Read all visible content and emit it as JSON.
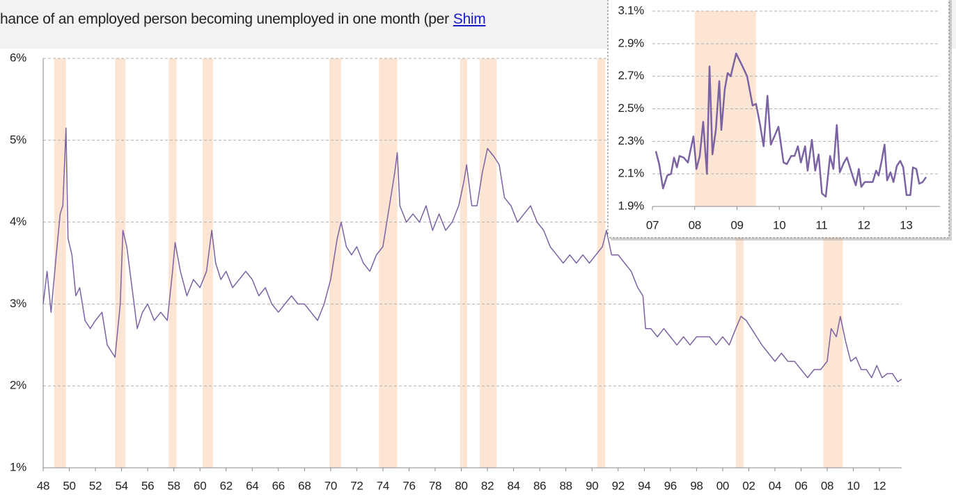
{
  "chart_data": [
    {
      "type": "line",
      "subtitle": "hance of an employed person becoming unemployed in one month (per",
      "subtitle_link": "Shim",
      "color": "#7b62a3",
      "recession_color": "#fde5d4",
      "grid": true,
      "xlim": [
        1948,
        2013.7
      ],
      "ylim": [
        1,
        6
      ],
      "yticks": [
        {
          "value": 1,
          "label": "1%"
        },
        {
          "value": 2,
          "label": "2%"
        },
        {
          "value": 3,
          "label": "3%"
        },
        {
          "value": 4,
          "label": "4%"
        },
        {
          "value": 5,
          "label": "5%"
        },
        {
          "value": 6,
          "label": "6%"
        }
      ],
      "xticks": [
        {
          "value": 1948,
          "label": "48"
        },
        {
          "value": 1950,
          "label": "50"
        },
        {
          "value": 1952,
          "label": "52"
        },
        {
          "value": 1954,
          "label": "54"
        },
        {
          "value": 1956,
          "label": "56"
        },
        {
          "value": 1958,
          "label": "58"
        },
        {
          "value": 1960,
          "label": "60"
        },
        {
          "value": 1962,
          "label": "62"
        },
        {
          "value": 1964,
          "label": "64"
        },
        {
          "value": 1966,
          "label": "66"
        },
        {
          "value": 1968,
          "label": "68"
        },
        {
          "value": 1970,
          "label": "70"
        },
        {
          "value": 1972,
          "label": "72"
        },
        {
          "value": 1974,
          "label": "74"
        },
        {
          "value": 1976,
          "label": "76"
        },
        {
          "value": 1978,
          "label": "78"
        },
        {
          "value": 1980,
          "label": "80"
        },
        {
          "value": 1982,
          "label": "82"
        },
        {
          "value": 1984,
          "label": "84"
        },
        {
          "value": 1986,
          "label": "86"
        },
        {
          "value": 1988,
          "label": "88"
        },
        {
          "value": 1990,
          "label": "90"
        },
        {
          "value": 1992,
          "label": "92"
        },
        {
          "value": 1994,
          "label": "94"
        },
        {
          "value": 1996,
          "label": "96"
        },
        {
          "value": 1998,
          "label": "98"
        },
        {
          "value": 2000,
          "label": "00"
        },
        {
          "value": 2002,
          "label": "02"
        },
        {
          "value": 2004,
          "label": "04"
        },
        {
          "value": 2006,
          "label": "06"
        },
        {
          "value": 2008,
          "label": "08"
        },
        {
          "value": 2010,
          "label": "10"
        },
        {
          "value": 2012,
          "label": "12"
        }
      ],
      "recessions": [
        [
          1948.85,
          1949.75
        ],
        [
          1953.5,
          1954.3
        ],
        [
          1957.6,
          1958.2
        ],
        [
          1960.2,
          1961.0
        ],
        [
          1969.9,
          1970.8
        ],
        [
          1973.7,
          1975.1
        ],
        [
          1979.9,
          1980.45
        ],
        [
          1981.4,
          1982.7
        ],
        [
          1990.4,
          1991.0
        ],
        [
          2001.0,
          2001.6
        ],
        [
          2007.7,
          2009.2
        ]
      ],
      "x": [
        1948.0,
        1948.3,
        1948.6,
        1949.0,
        1949.3,
        1949.5,
        1949.75,
        1949.9,
        1950.2,
        1950.5,
        1950.8,
        1951.2,
        1951.6,
        1952.0,
        1952.5,
        1952.9,
        1953.3,
        1953.5,
        1953.9,
        1954.1,
        1954.4,
        1954.8,
        1955.2,
        1955.6,
        1956.0,
        1956.5,
        1957.0,
        1957.5,
        1957.9,
        1958.1,
        1958.5,
        1959.0,
        1959.5,
        1960.0,
        1960.5,
        1960.9,
        1961.2,
        1961.6,
        1962.0,
        1962.5,
        1963.0,
        1963.5,
        1964.0,
        1964.5,
        1965.0,
        1965.5,
        1966.0,
        1966.5,
        1967.0,
        1967.5,
        1968.0,
        1968.5,
        1969.0,
        1969.5,
        1970.0,
        1970.5,
        1970.8,
        1971.2,
        1971.6,
        1972.0,
        1972.5,
        1973.0,
        1973.5,
        1974.0,
        1974.5,
        1974.9,
        1975.1,
        1975.3,
        1975.8,
        1976.3,
        1976.8,
        1977.3,
        1977.8,
        1978.3,
        1978.8,
        1979.3,
        1979.8,
        1980.2,
        1980.4,
        1980.8,
        1981.2,
        1981.6,
        1982.0,
        1982.5,
        1982.9,
        1983.3,
        1983.8,
        1984.3,
        1984.8,
        1985.3,
        1985.8,
        1986.3,
        1986.8,
        1987.3,
        1987.8,
        1988.3,
        1988.8,
        1989.3,
        1989.8,
        1990.3,
        1990.8,
        1991.1,
        1991.5,
        1992.0,
        1992.5,
        1993.0,
        1993.5,
        1993.9,
        1994.1,
        1994.5,
        1995.0,
        1995.5,
        1996.0,
        1996.5,
        1997.0,
        1997.5,
        1998.0,
        1998.5,
        1999.0,
        1999.5,
        2000.0,
        2000.5,
        2001.0,
        2001.4,
        2001.8,
        2002.2,
        2002.6,
        2003.0,
        2003.5,
        2004.0,
        2004.5,
        2005.0,
        2005.5,
        2006.0,
        2006.5,
        2007.0,
        2007.5,
        2008.0,
        2008.3,
        2008.7,
        2009.0,
        2009.4,
        2009.8,
        2010.2,
        2010.6,
        2011.0,
        2011.4,
        2011.8,
        2012.2,
        2012.6,
        2013.0,
        2013.4,
        2013.7
      ],
      "values": [
        3.0,
        3.4,
        2.9,
        3.6,
        4.1,
        4.2,
        5.15,
        3.8,
        3.6,
        3.1,
        3.2,
        2.8,
        2.7,
        2.8,
        2.9,
        2.5,
        2.4,
        2.35,
        3.0,
        3.9,
        3.7,
        3.2,
        2.7,
        2.9,
        3.0,
        2.8,
        2.9,
        2.8,
        3.4,
        3.75,
        3.4,
        3.1,
        3.3,
        3.2,
        3.4,
        3.9,
        3.5,
        3.3,
        3.4,
        3.2,
        3.3,
        3.4,
        3.3,
        3.1,
        3.2,
        3.0,
        2.9,
        3.0,
        3.1,
        3.0,
        3.0,
        2.9,
        2.8,
        3.0,
        3.3,
        3.8,
        4.0,
        3.7,
        3.6,
        3.7,
        3.5,
        3.4,
        3.6,
        3.7,
        4.2,
        4.6,
        4.85,
        4.2,
        4.0,
        4.1,
        4.0,
        4.2,
        3.9,
        4.1,
        3.9,
        4.0,
        4.2,
        4.5,
        4.7,
        4.2,
        4.2,
        4.6,
        4.9,
        4.8,
        4.7,
        4.3,
        4.2,
        4.0,
        4.1,
        4.2,
        4.0,
        3.9,
        3.7,
        3.6,
        3.5,
        3.6,
        3.5,
        3.6,
        3.5,
        3.6,
        3.7,
        3.9,
        3.6,
        3.6,
        3.5,
        3.4,
        3.2,
        3.1,
        2.7,
        2.7,
        2.6,
        2.7,
        2.6,
        2.5,
        2.6,
        2.5,
        2.6,
        2.6,
        2.6,
        2.5,
        2.6,
        2.5,
        2.7,
        2.85,
        2.8,
        2.7,
        2.6,
        2.5,
        2.4,
        2.3,
        2.4,
        2.3,
        2.3,
        2.2,
        2.1,
        2.2,
        2.2,
        2.3,
        2.7,
        2.6,
        2.85,
        2.55,
        2.3,
        2.35,
        2.2,
        2.2,
        2.1,
        2.25,
        2.1,
        2.15,
        2.15,
        2.05,
        2.08
      ]
    },
    {
      "type": "line",
      "inset": true,
      "color": "#7b62a3",
      "recession_color": "#fde5d4",
      "grid": true,
      "xlim": [
        2007,
        2013.8
      ],
      "ylim": [
        1.9,
        3.1
      ],
      "yticks": [
        {
          "value": 1.9,
          "label": "1.9%"
        },
        {
          "value": 2.1,
          "label": "2.1%"
        },
        {
          "value": 2.3,
          "label": "2.3%"
        },
        {
          "value": 2.5,
          "label": "2.5%"
        },
        {
          "value": 2.7,
          "label": "2.7%"
        },
        {
          "value": 2.9,
          "label": "2.9%"
        },
        {
          "value": 3.1,
          "label": "3.1%"
        }
      ],
      "xticks": [
        {
          "value": 2007,
          "label": "07"
        },
        {
          "value": 2008,
          "label": "08"
        },
        {
          "value": 2009,
          "label": "09"
        },
        {
          "value": 2010,
          "label": "10"
        },
        {
          "value": 2011,
          "label": "11"
        },
        {
          "value": 2012,
          "label": "12"
        },
        {
          "value": 2013,
          "label": "13"
        }
      ],
      "recessions": [
        [
          2008.0,
          2009.45
        ]
      ],
      "x": [
        2007.08,
        2007.16,
        2007.25,
        2007.35,
        2007.44,
        2007.51,
        2007.58,
        2007.64,
        2007.74,
        2007.84,
        2007.97,
        2008.04,
        2008.12,
        2008.2,
        2008.29,
        2008.35,
        2008.42,
        2008.5,
        2008.58,
        2008.63,
        2008.71,
        2008.78,
        2008.85,
        2008.98,
        2009.13,
        2009.24,
        2009.37,
        2009.45,
        2009.54,
        2009.63,
        2009.72,
        2009.8,
        2009.9,
        2009.98,
        2010.1,
        2010.18,
        2010.28,
        2010.36,
        2010.44,
        2010.51,
        2010.61,
        2010.67,
        2010.77,
        2010.85,
        2010.93,
        2011.01,
        2011.1,
        2011.2,
        2011.28,
        2011.36,
        2011.43,
        2011.53,
        2011.6,
        2011.73,
        2011.81,
        2011.88,
        2011.94,
        2012.02,
        2012.12,
        2012.21,
        2012.29,
        2012.35,
        2012.42,
        2012.49,
        2012.55,
        2012.63,
        2012.7,
        2012.78,
        2012.86,
        2012.93,
        2013.01,
        2013.1,
        2013.16,
        2013.24,
        2013.31,
        2013.39,
        2013.47
      ],
      "values": [
        2.24,
        2.16,
        2.01,
        2.09,
        2.1,
        2.2,
        2.14,
        2.21,
        2.2,
        2.17,
        2.33,
        2.13,
        2.21,
        2.42,
        2.1,
        2.76,
        2.22,
        2.37,
        2.67,
        2.37,
        2.62,
        2.72,
        2.7,
        2.84,
        2.76,
        2.7,
        2.52,
        2.53,
        2.41,
        2.27,
        2.58,
        2.28,
        2.34,
        2.39,
        2.17,
        2.16,
        2.21,
        2.21,
        2.27,
        2.17,
        2.27,
        2.12,
        2.31,
        2.12,
        2.22,
        1.98,
        1.96,
        2.21,
        2.13,
        2.4,
        2.11,
        2.17,
        2.2,
        2.09,
        2.03,
        2.13,
        2.02,
        2.05,
        2.05,
        2.05,
        2.12,
        2.09,
        2.18,
        2.28,
        2.06,
        2.11,
        2.05,
        2.15,
        2.18,
        2.14,
        1.97,
        1.97,
        2.14,
        2.13,
        2.04,
        2.05,
        2.08
      ]
    }
  ]
}
